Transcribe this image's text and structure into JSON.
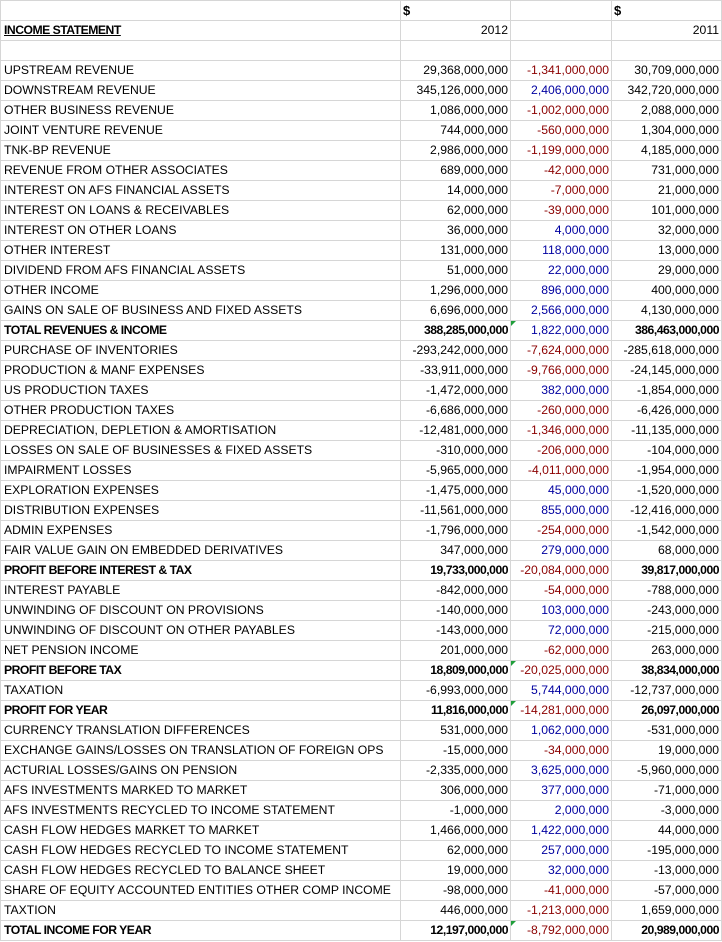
{
  "header": {
    "currency_2012": "$",
    "currency_2011": "$",
    "title": "INCOME STATEMENT",
    "year_2012": "2012",
    "year_2011": "2011"
  },
  "colors": {
    "negative_diff": "#8b0000",
    "positive_diff": "#0000a0",
    "marker": "#1f9e3a"
  },
  "rows": [
    {
      "label": "UPSTREAM REVENUE",
      "v2012": "29,368,000,000",
      "diff": "-1,341,000,000",
      "v2011": "30,709,000,000",
      "bold": false
    },
    {
      "label": "DOWNSTREAM REVENUE",
      "v2012": "345,126,000,000",
      "diff": "2,406,000,000",
      "v2011": "342,720,000,000",
      "bold": false
    },
    {
      "label": "OTHER BUSINESS REVENUE",
      "v2012": "1,086,000,000",
      "diff": "-1,002,000,000",
      "v2011": "2,088,000,000",
      "bold": false
    },
    {
      "label": "JOINT VENTURE REVENUE",
      "v2012": "744,000,000",
      "diff": "-560,000,000",
      "v2011": "1,304,000,000",
      "bold": false
    },
    {
      "label": "TNK-BP REVENUE",
      "v2012": "2,986,000,000",
      "diff": "-1,199,000,000",
      "v2011": "4,185,000,000",
      "bold": false
    },
    {
      "label": "REVENUE FROM OTHER ASSOCIATES",
      "v2012": "689,000,000",
      "diff": "-42,000,000",
      "v2011": "731,000,000",
      "bold": false
    },
    {
      "label": "INTEREST ON AFS FINANCIAL ASSETS",
      "v2012": "14,000,000",
      "diff": "-7,000,000",
      "v2011": "21,000,000",
      "bold": false
    },
    {
      "label": "INTEREST ON LOANS & RECEIVABLES",
      "v2012": "62,000,000",
      "diff": "-39,000,000",
      "v2011": "101,000,000",
      "bold": false
    },
    {
      "label": "INTEREST ON OTHER LOANS",
      "v2012": "36,000,000",
      "diff": "4,000,000",
      "v2011": "32,000,000",
      "bold": false
    },
    {
      "label": "OTHER INTEREST",
      "v2012": "131,000,000",
      "diff": "118,000,000",
      "v2011": "13,000,000",
      "bold": false
    },
    {
      "label": "DIVIDEND FROM AFS FINANCIAL ASSETS",
      "v2012": "51,000,000",
      "diff": "22,000,000",
      "v2011": "29,000,000",
      "bold": false
    },
    {
      "label": "OTHER INCOME",
      "v2012": "1,296,000,000",
      "diff": "896,000,000",
      "v2011": "400,000,000",
      "bold": false
    },
    {
      "label": "GAINS ON SALE OF BUSINESS AND FIXED ASSETS",
      "v2012": "6,696,000,000",
      "diff": "2,566,000,000",
      "v2011": "4,130,000,000",
      "bold": false
    },
    {
      "label": "TOTAL REVENUES & INCOME",
      "v2012": "388,285,000,000",
      "diff": "1,822,000,000",
      "v2011": "386,463,000,000",
      "bold": true,
      "marker": true
    },
    {
      "label": "PURCHASE OF INVENTORIES",
      "v2012": "-293,242,000,000",
      "diff": "-7,624,000,000",
      "v2011": "-285,618,000,000",
      "bold": false
    },
    {
      "label": "PRODUCTION & MANF EXPENSES",
      "v2012": "-33,911,000,000",
      "diff": "-9,766,000,000",
      "v2011": "-24,145,000,000",
      "bold": false
    },
    {
      "label": "US PRODUCTION TAXES",
      "v2012": "-1,472,000,000",
      "diff": "382,000,000",
      "v2011": "-1,854,000,000",
      "bold": false
    },
    {
      "label": "OTHER PRODUCTION TAXES",
      "v2012": "-6,686,000,000",
      "diff": "-260,000,000",
      "v2011": "-6,426,000,000",
      "bold": false
    },
    {
      "label": "DEPRECIATION, DEPLETION & AMORTISATION",
      "v2012": "-12,481,000,000",
      "diff": "-1,346,000,000",
      "v2011": "-11,135,000,000",
      "bold": false
    },
    {
      "label": "LOSSES ON SALE OF BUSINESSES & FIXED ASSETS",
      "v2012": "-310,000,000",
      "diff": "-206,000,000",
      "v2011": "-104,000,000",
      "bold": false
    },
    {
      "label": "IMPAIRMENT LOSSES",
      "v2012": "-5,965,000,000",
      "diff": "-4,011,000,000",
      "v2011": "-1,954,000,000",
      "bold": false
    },
    {
      "label": "EXPLORATION EXPENSES",
      "v2012": "-1,475,000,000",
      "diff": "45,000,000",
      "v2011": "-1,520,000,000",
      "bold": false
    },
    {
      "label": "DISTRIBUTION EXPENSES",
      "v2012": "-11,561,000,000",
      "diff": "855,000,000",
      "v2011": "-12,416,000,000",
      "bold": false
    },
    {
      "label": "ADMIN EXPENSES",
      "v2012": "-1,796,000,000",
      "diff": "-254,000,000",
      "v2011": "-1,542,000,000",
      "bold": false
    },
    {
      "label": "FAIR VALUE GAIN ON EMBEDDED DERIVATIVES",
      "v2012": "347,000,000",
      "diff": "279,000,000",
      "v2011": "68,000,000",
      "bold": false
    },
    {
      "label": "PROFIT BEFORE INTEREST & TAX",
      "v2012": "19,733,000,000",
      "diff": "-20,084,000,000",
      "v2011": "39,817,000,000",
      "bold": true
    },
    {
      "label": "INTEREST PAYABLE",
      "v2012": "-842,000,000",
      "diff": "-54,000,000",
      "v2011": "-788,000,000",
      "bold": false
    },
    {
      "label": "UNWINDING OF DISCOUNT ON PROVISIONS",
      "v2012": "-140,000,000",
      "diff": "103,000,000",
      "v2011": "-243,000,000",
      "bold": false
    },
    {
      "label": "UNWINDING OF DISCOUNT ON OTHER PAYABLES",
      "v2012": "-143,000,000",
      "diff": "72,000,000",
      "v2011": "-215,000,000",
      "bold": false
    },
    {
      "label": "NET PENSION INCOME",
      "v2012": "201,000,000",
      "diff": "-62,000,000",
      "v2011": "263,000,000",
      "bold": false
    },
    {
      "label": "PROFIT BEFORE TAX",
      "v2012": "18,809,000,000",
      "diff": "-20,025,000,000",
      "v2011": "38,834,000,000",
      "bold": true,
      "marker": true
    },
    {
      "label": "TAXATION",
      "v2012": "-6,993,000,000",
      "diff": "5,744,000,000",
      "v2011": "-12,737,000,000",
      "bold": false
    },
    {
      "label": "PROFIT FOR YEAR",
      "v2012": "11,816,000,000",
      "diff": "-14,281,000,000",
      "v2011": "26,097,000,000",
      "bold": true,
      "marker": true
    },
    {
      "label": "CURRENCY TRANSLATION DIFFERENCES",
      "v2012": "531,000,000",
      "diff": "1,062,000,000",
      "v2011": "-531,000,000",
      "bold": false
    },
    {
      "label": "EXCHANGE GAINS/LOSSES ON TRANSLATION OF FOREIGN OPS",
      "v2012": "-15,000,000",
      "diff": "-34,000,000",
      "v2011": "19,000,000",
      "bold": false
    },
    {
      "label": "ACTURIAL LOSSES/GAINS ON PENSION",
      "v2012": "-2,335,000,000",
      "diff": "3,625,000,000",
      "v2011": "-5,960,000,000",
      "bold": false
    },
    {
      "label": "AFS INVESTMENTS MARKED TO MARKET",
      "v2012": "306,000,000",
      "diff": "377,000,000",
      "v2011": "-71,000,000",
      "bold": false
    },
    {
      "label": "AFS INVESTMENTS RECYCLED TO INCOME STATEMENT",
      "v2012": "-1,000,000",
      "diff": "2,000,000",
      "v2011": "-3,000,000",
      "bold": false
    },
    {
      "label": "CASH FLOW HEDGES MARKET TO MARKET",
      "v2012": "1,466,000,000",
      "diff": "1,422,000,000",
      "v2011": "44,000,000",
      "bold": false
    },
    {
      "label": "CASH FLOW HEDGES RECYCLED TO INCOME STATEMENT",
      "v2012": "62,000,000",
      "diff": "257,000,000",
      "v2011": "-195,000,000",
      "bold": false
    },
    {
      "label": "CASH FLOW HEDGES RECYCLED TO BALANCE SHEET",
      "v2012": "19,000,000",
      "diff": "32,000,000",
      "v2011": "-13,000,000",
      "bold": false
    },
    {
      "label": "SHARE OF EQUITY ACCOUNTED ENTITIES OTHER COMP INCOME",
      "v2012": "-98,000,000",
      "diff": "-41,000,000",
      "v2011": "-57,000,000",
      "bold": false
    },
    {
      "label": "TAXTION",
      "v2012": "446,000,000",
      "diff": "-1,213,000,000",
      "v2011": "1,659,000,000",
      "bold": false
    },
    {
      "label": "TOTAL INCOME FOR YEAR",
      "v2012": "12,197,000,000",
      "diff": "-8,792,000,000",
      "v2011": "20,989,000,000",
      "bold": true,
      "marker": true
    }
  ]
}
